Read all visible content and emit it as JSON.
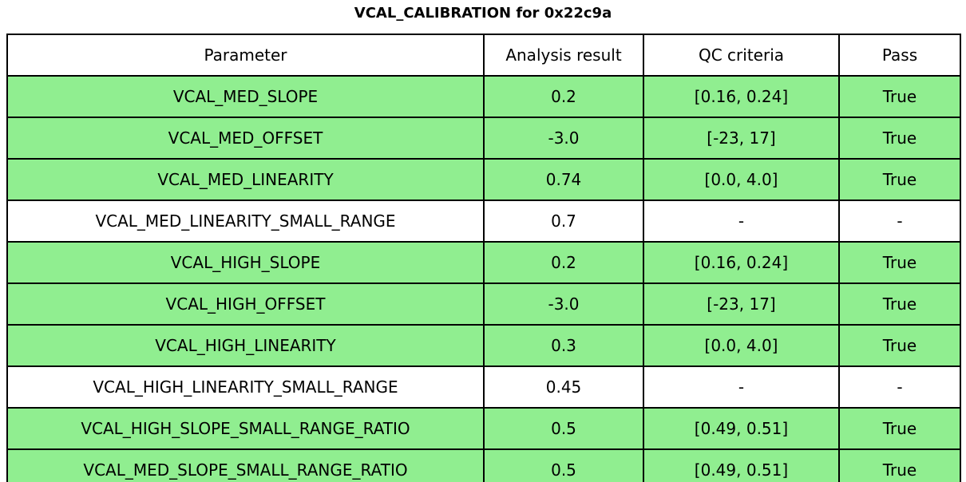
{
  "title": "VCAL_CALIBRATION for 0x22c9a",
  "colors": {
    "pass_row_green": "#90ee90",
    "default_row_white": "#ffffff",
    "border_black": "#000000"
  },
  "chart_data": {
    "type": "table",
    "title": "VCAL_CALIBRATION for 0x22c9a",
    "columns": [
      "Parameter",
      "Analysis result",
      "QC criteria",
      "Pass"
    ],
    "rows": [
      {
        "parameter": "VCAL_MED_SLOPE",
        "analysis_result": "0.2",
        "qc_criteria": "[0.16, 0.24]",
        "pass": "True",
        "pass_highlight": true
      },
      {
        "parameter": "VCAL_MED_OFFSET",
        "analysis_result": "-3.0",
        "qc_criteria": "[-23, 17]",
        "pass": "True",
        "pass_highlight": true
      },
      {
        "parameter": "VCAL_MED_LINEARITY",
        "analysis_result": "0.74",
        "qc_criteria": "[0.0, 4.0]",
        "pass": "True",
        "pass_highlight": true
      },
      {
        "parameter": "VCAL_MED_LINEARITY_SMALL_RANGE",
        "analysis_result": "0.7",
        "qc_criteria": "-",
        "pass": "-",
        "pass_highlight": false
      },
      {
        "parameter": "VCAL_HIGH_SLOPE",
        "analysis_result": "0.2",
        "qc_criteria": "[0.16, 0.24]",
        "pass": "True",
        "pass_highlight": true
      },
      {
        "parameter": "VCAL_HIGH_OFFSET",
        "analysis_result": "-3.0",
        "qc_criteria": "[-23, 17]",
        "pass": "True",
        "pass_highlight": true
      },
      {
        "parameter": "VCAL_HIGH_LINEARITY",
        "analysis_result": "0.3",
        "qc_criteria": "[0.0, 4.0]",
        "pass": "True",
        "pass_highlight": true
      },
      {
        "parameter": "VCAL_HIGH_LINEARITY_SMALL_RANGE",
        "analysis_result": "0.45",
        "qc_criteria": "-",
        "pass": "-",
        "pass_highlight": false
      },
      {
        "parameter": "VCAL_HIGH_SLOPE_SMALL_RANGE_RATIO",
        "analysis_result": "0.5",
        "qc_criteria": "[0.49, 0.51]",
        "pass": "True",
        "pass_highlight": true
      },
      {
        "parameter": "VCAL_MED_SLOPE_SMALL_RANGE_RATIO",
        "analysis_result": "0.5",
        "qc_criteria": "[0.49, 0.51]",
        "pass": "True",
        "pass_highlight": true
      }
    ]
  }
}
